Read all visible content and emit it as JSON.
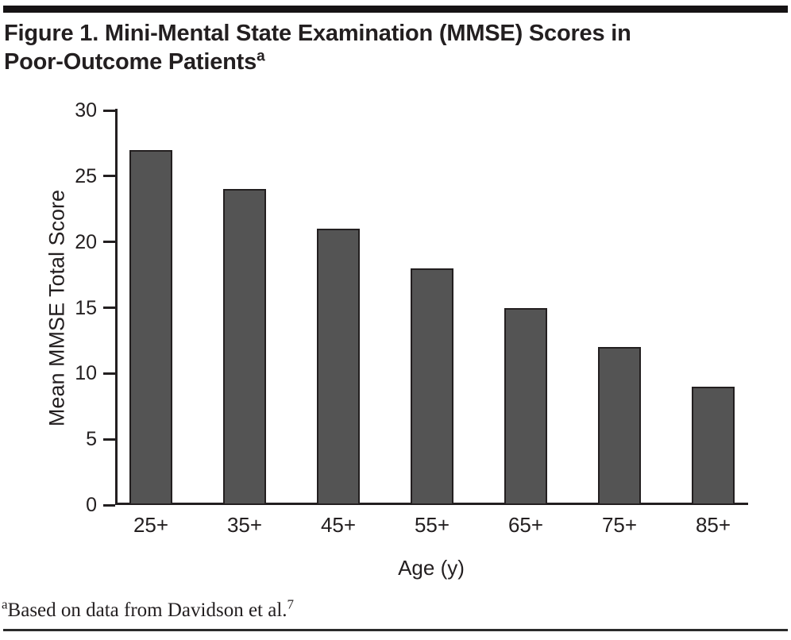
{
  "page": {
    "title": {
      "line1": "Figure 1. Mini-Mental State Examination (MMSE) Scores in",
      "line2": "Poor-Outcome Patients",
      "superscript": "a"
    },
    "footnote": {
      "marker": "a",
      "text": "Based on data from Davidson et al.",
      "reference": "7"
    }
  },
  "chart_data": {
    "type": "bar",
    "title": "Figure 1. Mini-Mental State Examination (MMSE) Scores in Poor-Outcome Patients",
    "categories": [
      "25+",
      "35+",
      "45+",
      "55+",
      "65+",
      "75+",
      "85+"
    ],
    "values": [
      27,
      24,
      21,
      18,
      15,
      12,
      9
    ],
    "xlabel": "Age (y)",
    "ylabel": "Mean MMSE Total Score",
    "ylim": [
      0,
      30
    ],
    "yticks": [
      0,
      5,
      10,
      15,
      20,
      25,
      30
    ],
    "grid": false,
    "legend_position": "none",
    "bar_color": "#545454",
    "bar_border_color": "#231f20",
    "axis_color": "#231f20",
    "text_color": "#231f20"
  }
}
